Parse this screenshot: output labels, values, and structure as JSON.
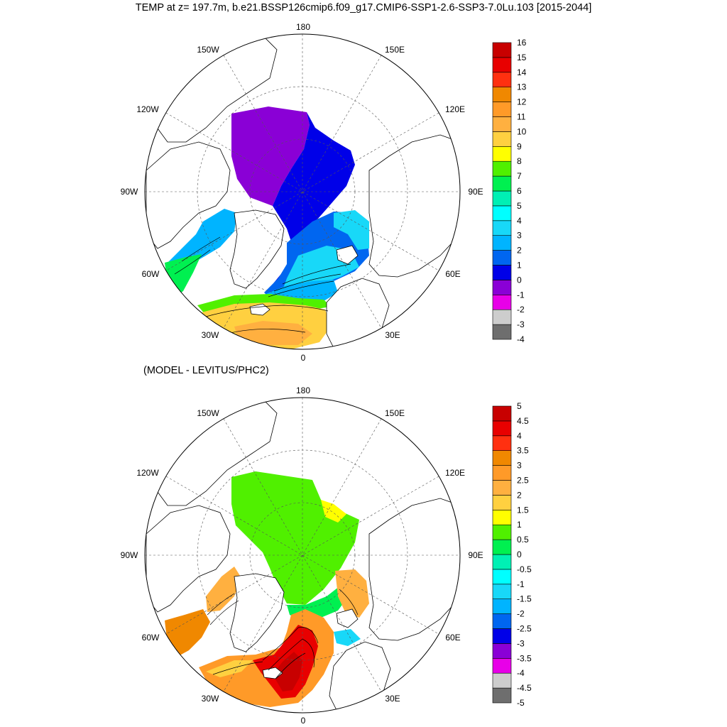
{
  "header": {
    "title": "TEMP at z= 197.7m, b.e21.BSSP126cmip6.f09_g17.CMIP6-SSP1-2.6-SSP3-7.0Lu.103 [2015-2044]"
  },
  "lower": {
    "subtitle": "(MODEL - LEVITUS/PHC2)"
  },
  "meridian_labels": {
    "top": "180",
    "bottom": "0",
    "w150": "150W",
    "e150": "150E",
    "w120": "120W",
    "e120": "120E",
    "w90": "90W",
    "e90": "90E",
    "w60": "60W",
    "e60": "60E",
    "w30": "30W",
    "e30": "30E"
  },
  "colors": {
    "upper_bar": [
      "#6e6e6e",
      "#cdcdcd",
      "#e800e8",
      "#8a00d6",
      "#0000e8",
      "#0066f0",
      "#00b4ff",
      "#18d8f8",
      "#00ffff",
      "#00f0b4",
      "#00f050",
      "#50f000",
      "#ffff00",
      "#ffd040",
      "#ffb040",
      "#ff9a28",
      "#f08800",
      "#ff3010",
      "#e80000",
      "#c80000"
    ],
    "lower_bar": [
      "#6e6e6e",
      "#cdcdcd",
      "#e800e8",
      "#8a00d6",
      "#0000e8",
      "#0066f0",
      "#00b4ff",
      "#18d8f8",
      "#00ffff",
      "#00f0b4",
      "#00f050",
      "#50f000",
      "#ffff00",
      "#ffd040",
      "#ffb040",
      "#ff9a28",
      "#f08800",
      "#ff3010",
      "#e80000",
      "#c80000"
    ]
  },
  "legend_upper": {
    "labels": [
      "16",
      "15",
      "14",
      "13",
      "12",
      "11",
      "10",
      "9",
      "8",
      "7",
      "6",
      "5",
      "4",
      "3",
      "2",
      "1",
      "0",
      "-1",
      "-2",
      "-3",
      "-4"
    ]
  },
  "legend_lower": {
    "labels": [
      "5",
      "4.5",
      "4",
      "3.5",
      "3",
      "2.5",
      "2",
      "1.5",
      "1",
      "0.5",
      "0",
      "-0.5",
      "-1",
      "-1.5",
      "-2",
      "-2.5",
      "-3",
      "-3.5",
      "-4",
      "-4.5",
      "-5"
    ]
  }
}
